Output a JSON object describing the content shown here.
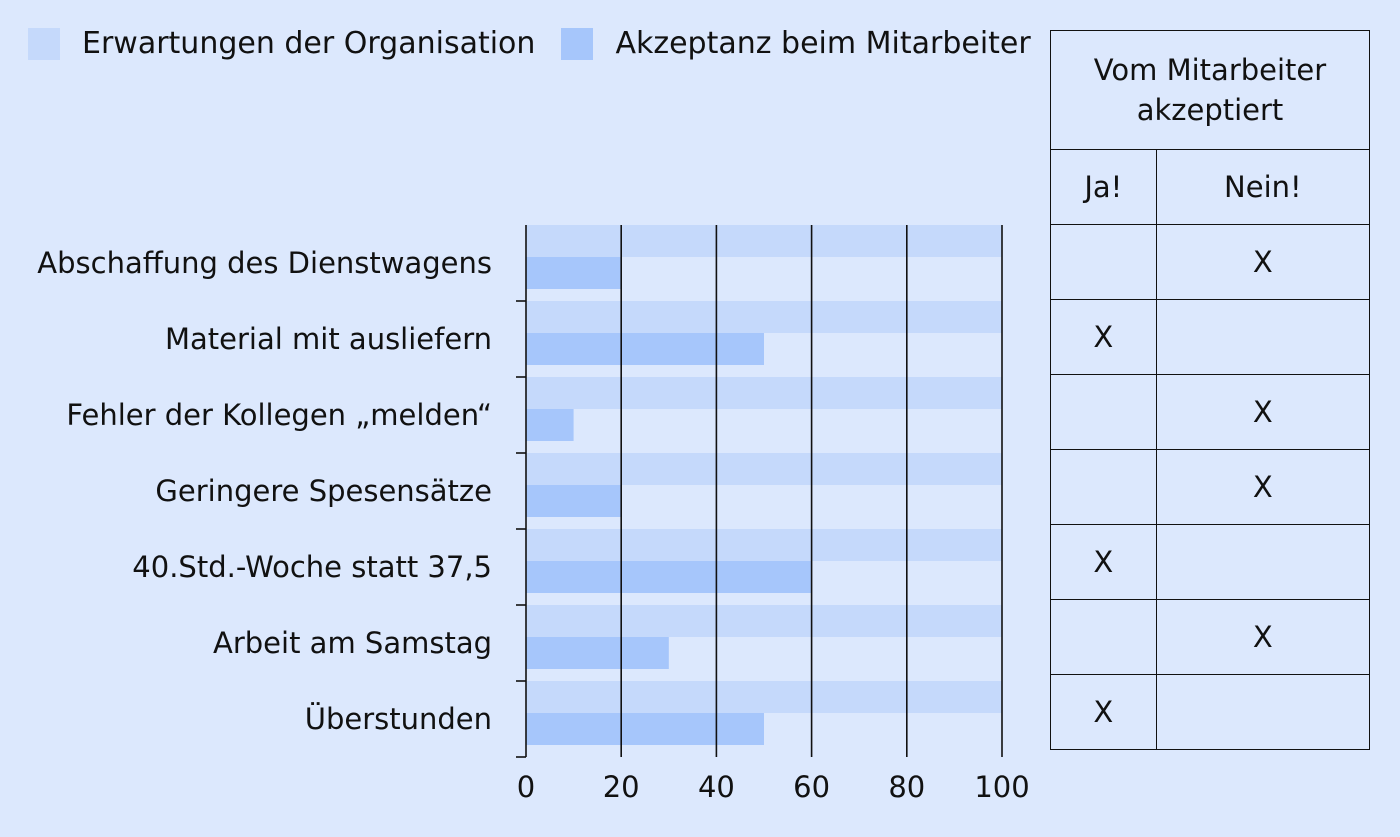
{
  "legend": [
    {
      "label": "Erwartungen der Organisation",
      "color": "#c5d9fb"
    },
    {
      "label": "Akzeptanz beim Mitarbeiter",
      "color": "#a6c6fb"
    }
  ],
  "chart_data": {
    "type": "bar",
    "orientation": "horizontal",
    "categories": [
      "Abschaffung des Dienstwagens",
      "Material mit ausliefern",
      "Fehler der Kollegen „melden“",
      "Geringere Spesensätze",
      "40.Std.-Woche statt 37,5",
      "Arbeit am Samstag",
      "Überstunden"
    ],
    "series": [
      {
        "name": "Erwartungen der Organisation",
        "values": [
          100,
          100,
          100,
          100,
          100,
          100,
          100
        ],
        "color": "#c5d9fb"
      },
      {
        "name": "Akzeptanz beim Mitarbeiter",
        "values": [
          20,
          50,
          10,
          20,
          60,
          30,
          50
        ],
        "color": "#a6c6fb"
      }
    ],
    "xlim": [
      0,
      100
    ],
    "xticks": [
      "0",
      "20",
      "40",
      "60",
      "80",
      "100"
    ],
    "grid": true,
    "legend_position": "top-left"
  },
  "table": {
    "header": "Vom Mitarbeiter akzeptiert",
    "columns": [
      "Ja!",
      "Nein!"
    ],
    "rows": [
      {
        "ja": "",
        "nein": "X"
      },
      {
        "ja": "X",
        "nein": ""
      },
      {
        "ja": "",
        "nein": "X"
      },
      {
        "ja": "",
        "nein": "X"
      },
      {
        "ja": "X",
        "nein": ""
      },
      {
        "ja": "",
        "nein": "X"
      },
      {
        "ja": "X",
        "nein": ""
      }
    ]
  }
}
